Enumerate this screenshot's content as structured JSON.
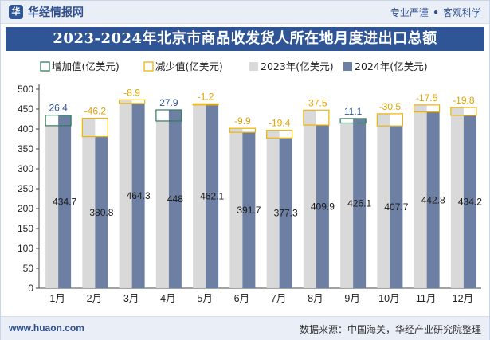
{
  "header": {
    "brand": "华经情报网",
    "brand_icon": "huajing-logo-icon",
    "slogan_left": "专业严谨",
    "slogan_dot": "●",
    "slogan_right": "客观科学"
  },
  "footer": {
    "website": "www.huaon.com",
    "source": "数据来源：中国海关，华经产业研究院整理"
  },
  "chart_data": {
    "type": "bar",
    "title": "2023-2024年北京市商品收发货人所在地月度进出口总额",
    "categories": [
      "1月",
      "2月",
      "3月",
      "4月",
      "5月",
      "6月",
      "7月",
      "8月",
      "9月",
      "10月",
      "11月",
      "12月"
    ],
    "series": [
      {
        "name": "增加值(亿美元)",
        "color": "#2e7d5b"
      },
      {
        "name": "减少值(亿美元)",
        "color": "#f0b400"
      },
      {
        "name": "2023年(亿美元)",
        "color": "#d9d9d9",
        "values": [
          408.3,
          427.0,
          473.2,
          420.1,
          463.3,
          401.6,
          396.7,
          447.4,
          415.0,
          438.2,
          460.3,
          454.0
        ]
      },
      {
        "name": "2024年(亿美元)",
        "color": "#6d7fa3",
        "values": [
          434.7,
          380.8,
          464.3,
          448.0,
          462.1,
          391.7,
          377.3,
          409.9,
          426.1,
          407.7,
          442.8,
          434.2
        ]
      }
    ],
    "diff_labels": [
      "26.4",
      "-46.2",
      "-8.9",
      "27.9",
      "-1.2",
      "-9.9",
      "-19.4",
      "-37.5",
      "11.1",
      "-30.5",
      "-17.5",
      "-19.8"
    ],
    "value_labels": [
      "434.7",
      "380.8",
      "464.3",
      "448",
      "462.1",
      "391.7",
      "377.3",
      "409.9",
      "426.1",
      "407.7",
      "442.8",
      "434.2"
    ],
    "ylim": [
      0,
      500
    ],
    "yticks": [
      "0",
      "50",
      "100",
      "150",
      "200",
      "250",
      "300",
      "350",
      "400",
      "450",
      "500"
    ],
    "legend_position": "top-left",
    "grid": false,
    "colors": {
      "increase": "#2e7d5b",
      "decrease": "#f0b400",
      "increase_label": "#2f5597",
      "decrease_label": "#e0a400",
      "axis": "#444444"
    }
  }
}
